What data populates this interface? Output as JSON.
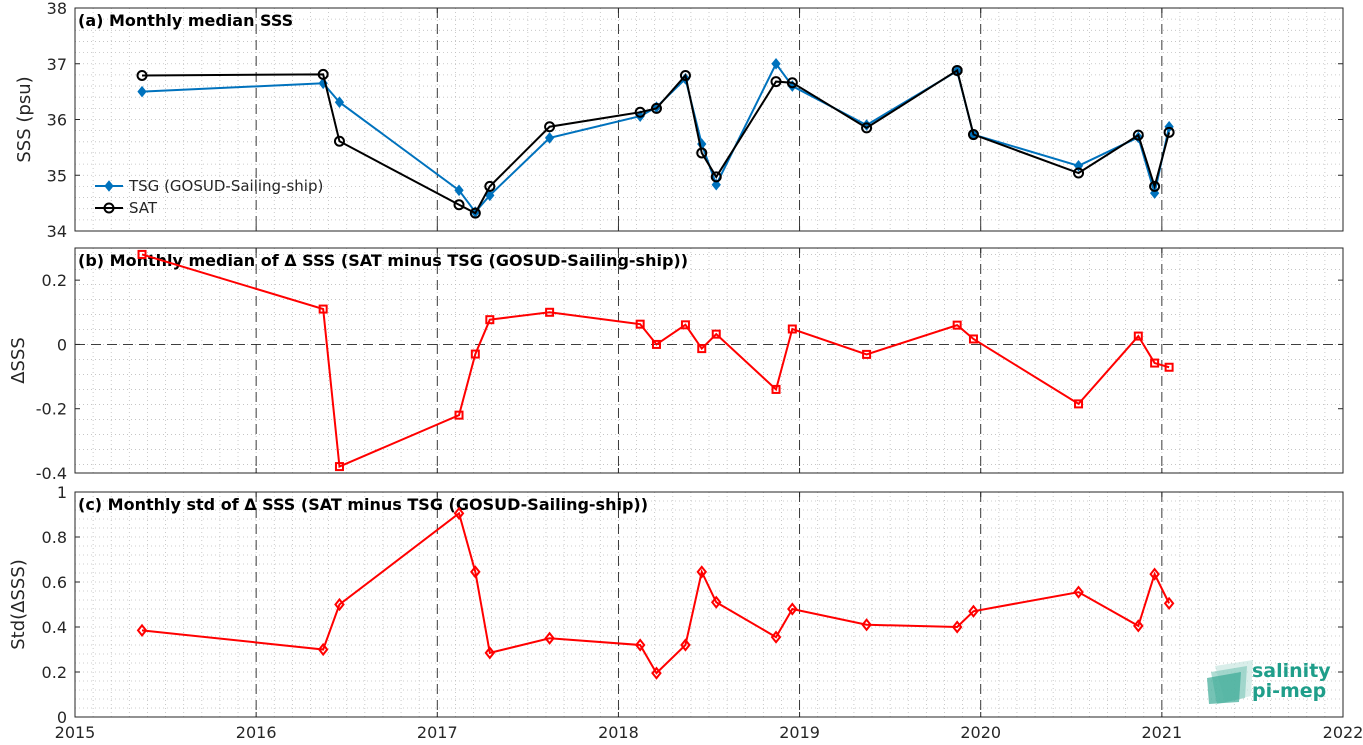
{
  "chart_data": [
    {
      "type": "line",
      "title": "(a) Monthly median SSS",
      "ylabel": "SSS (psu)",
      "xlim": [
        2015,
        2022
      ],
      "ylim": [
        34,
        38
      ],
      "yticks": [
        "34",
        "35",
        "36",
        "37",
        "38"
      ],
      "x": [
        2015.37,
        2016.37,
        2016.46,
        2017.12,
        2017.21,
        2017.29,
        2017.62,
        2018.12,
        2018.21,
        2018.37,
        2018.46,
        2018.54,
        2018.87,
        2018.96,
        2019.37,
        2019.87,
        2019.96,
        2020.54,
        2020.87,
        2020.96,
        2021.04
      ],
      "series": [
        {
          "name": "TSG (GOSUD-Sailing-ship)",
          "color": "#0072BD",
          "marker": "diamond-filled",
          "values": [
            36.5,
            36.65,
            36.31,
            34.73,
            34.34,
            34.64,
            35.67,
            36.06,
            36.22,
            36.73,
            35.56,
            34.83,
            37.0,
            36.6,
            35.9,
            36.87,
            35.73,
            35.17,
            35.68,
            34.68,
            35.87
          ]
        },
        {
          "name": "SAT",
          "color": "#000000",
          "marker": "circle-open",
          "values": [
            36.79,
            36.81,
            35.61,
            34.47,
            34.32,
            34.8,
            35.87,
            36.13,
            36.2,
            36.79,
            35.4,
            34.97,
            36.68,
            36.66,
            35.85,
            36.88,
            35.73,
            35.04,
            35.72,
            34.8,
            35.77
          ]
        }
      ],
      "legend_position": "lower-left"
    },
    {
      "type": "line",
      "title": "(b) Monthly median of Δ SSS (SAT minus TSG (GOSUD-Sailing-ship))",
      "ylabel": "ΔSSS",
      "xlim": [
        2015,
        2022
      ],
      "ylim": [
        -0.4,
        0.3
      ],
      "yticks": [
        "-0.4",
        "-0.2",
        "0",
        "0.2"
      ],
      "x": [
        2015.37,
        2016.37,
        2016.46,
        2017.12,
        2017.21,
        2017.29,
        2017.62,
        2018.12,
        2018.21,
        2018.37,
        2018.46,
        2018.54,
        2018.87,
        2018.96,
        2019.37,
        2019.87,
        2019.96,
        2020.54,
        2020.87,
        2020.96,
        2021.04
      ],
      "series": [
        {
          "color": "#FF0000",
          "marker": "square-open",
          "values": [
            0.28,
            0.11,
            -0.38,
            -0.22,
            -0.03,
            0.077,
            0.1,
            0.063,
            0.0,
            0.061,
            -0.013,
            0.032,
            -0.14,
            0.048,
            -0.031,
            0.06,
            0.017,
            -0.185,
            0.026,
            -0.058,
            -0.071
          ]
        }
      ]
    },
    {
      "type": "line",
      "title": "(c) Monthly std of Δ SSS (SAT minus TSG (GOSUD-Sailing-ship))",
      "ylabel": "Std(ΔSSS)",
      "xlim": [
        2015,
        2022
      ],
      "ylim": [
        0,
        1
      ],
      "yticks": [
        "0",
        "0.2",
        "0.4",
        "0.6",
        "0.8",
        "1"
      ],
      "x": [
        2015.37,
        2016.37,
        2016.46,
        2017.12,
        2017.21,
        2017.29,
        2017.62,
        2018.12,
        2018.21,
        2018.37,
        2018.46,
        2018.54,
        2018.87,
        2018.96,
        2019.37,
        2019.87,
        2019.96,
        2020.54,
        2020.87,
        2020.96,
        2021.04
      ],
      "series": [
        {
          "color": "#FF0000",
          "marker": "diamond-open",
          "values": [
            0.385,
            0.3,
            0.5,
            0.905,
            0.645,
            0.285,
            0.35,
            0.32,
            0.195,
            0.32,
            0.645,
            0.51,
            0.355,
            0.48,
            0.41,
            0.4,
            0.47,
            0.555,
            0.405,
            0.635,
            0.505
          ]
        }
      ],
      "xticks": [
        "2015",
        "2016",
        "2017",
        "2018",
        "2019",
        "2020",
        "2021",
        "2022"
      ]
    }
  ],
  "logo": {
    "line1": "salinity",
    "line2": "pi-mep",
    "accent": "#1f9e8a"
  }
}
